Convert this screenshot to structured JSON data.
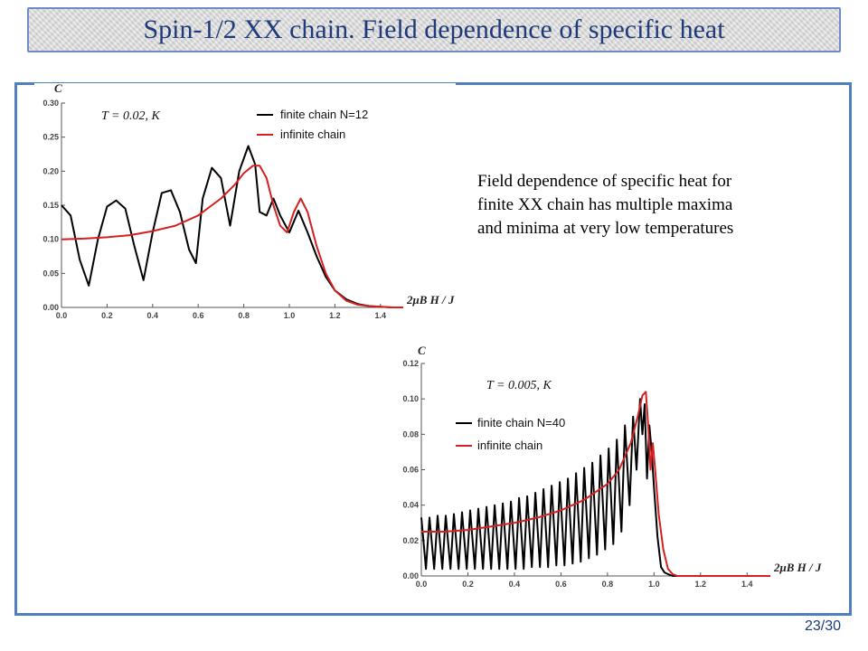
{
  "slide": {
    "title": "Spin-1/2 XX chain. Field dependence of specific heat",
    "description_lines": [
      "Field dependence of specific heat for",
      "finite XX chain has multiple maxima",
      "and minima at very low temperatures"
    ],
    "page_number": "23/30"
  },
  "colors": {
    "finite": "#000000",
    "infinite": "#d42020",
    "frame": "#4f7fc0",
    "title_text": "#1f3a7a"
  },
  "chart_data": [
    {
      "type": "line",
      "annotation": "T = 0.02, K",
      "ylabel": "C",
      "xlabel": "2μB H / J",
      "xlim": [
        0.0,
        1.5
      ],
      "ylim": [
        0.0,
        0.3
      ],
      "x_ticks": [
        "0.0",
        "0.2",
        "0.4",
        "0.6",
        "0.8",
        "1.0",
        "1.2",
        "1.4"
      ],
      "y_ticks": [
        "0.00",
        "0.05",
        "0.10",
        "0.15",
        "0.20",
        "0.25",
        "0.30"
      ],
      "x_tick_values": [
        0.0,
        0.2,
        0.4,
        0.6,
        0.8,
        1.0,
        1.2,
        1.4
      ],
      "y_tick_values": [
        0.0,
        0.05,
        0.1,
        0.15,
        0.2,
        0.25,
        0.3
      ],
      "series": [
        {
          "name": "finite chain N=12",
          "color": "#000000",
          "x": [
            0.0,
            0.04,
            0.08,
            0.12,
            0.16,
            0.2,
            0.24,
            0.28,
            0.32,
            0.36,
            0.4,
            0.44,
            0.48,
            0.52,
            0.56,
            0.59,
            0.62,
            0.66,
            0.7,
            0.74,
            0.78,
            0.82,
            0.85,
            0.87,
            0.9,
            0.93,
            0.96,
            1.0,
            1.04,
            1.08,
            1.12,
            1.16,
            1.2,
            1.25,
            1.3,
            1.35,
            1.4,
            1.45,
            1.5
          ],
          "y": [
            0.15,
            0.135,
            0.07,
            0.032,
            0.1,
            0.148,
            0.157,
            0.145,
            0.09,
            0.04,
            0.11,
            0.168,
            0.172,
            0.14,
            0.085,
            0.065,
            0.16,
            0.205,
            0.19,
            0.12,
            0.2,
            0.237,
            0.21,
            0.14,
            0.135,
            0.16,
            0.135,
            0.11,
            0.142,
            0.11,
            0.075,
            0.045,
            0.025,
            0.012,
            0.005,
            0.002,
            0.001,
            0.0,
            0.0
          ]
        },
        {
          "name": "infinite chain",
          "color": "#d42020",
          "x": [
            0.0,
            0.1,
            0.2,
            0.3,
            0.4,
            0.5,
            0.6,
            0.7,
            0.76,
            0.8,
            0.84,
            0.87,
            0.9,
            0.93,
            0.96,
            0.99,
            1.02,
            1.05,
            1.08,
            1.12,
            1.16,
            1.2,
            1.25,
            1.3,
            1.35,
            1.4,
            1.45,
            1.5
          ],
          "y": [
            0.1,
            0.101,
            0.103,
            0.106,
            0.112,
            0.12,
            0.135,
            0.16,
            0.18,
            0.197,
            0.208,
            0.208,
            0.19,
            0.15,
            0.12,
            0.11,
            0.14,
            0.16,
            0.14,
            0.09,
            0.05,
            0.025,
            0.01,
            0.004,
            0.002,
            0.001,
            0.0,
            0.0
          ]
        }
      ]
    },
    {
      "type": "line",
      "annotation": "T = 0.005, K",
      "ylabel": "C",
      "xlabel": "2μB H / J",
      "xlim": [
        0.0,
        1.5
      ],
      "ylim": [
        0.0,
        0.12
      ],
      "x_ticks": [
        "0.0",
        "0.2",
        "0.4",
        "0.6",
        "0.8",
        "1.0",
        "1.2",
        "1.4"
      ],
      "y_ticks": [
        "0.00",
        "0.02",
        "0.04",
        "0.06",
        "0.08",
        "0.10",
        "0.12"
      ],
      "x_tick_values": [
        0.0,
        0.2,
        0.4,
        0.6,
        0.8,
        1.0,
        1.2,
        1.4
      ],
      "y_tick_values": [
        0.0,
        0.02,
        0.04,
        0.06,
        0.08,
        0.1,
        0.12
      ],
      "series": [
        {
          "name": "finite chain N=40",
          "color": "#000000",
          "x": [
            0.0,
            0.02,
            0.035,
            0.055,
            0.07,
            0.09,
            0.105,
            0.125,
            0.14,
            0.16,
            0.175,
            0.195,
            0.21,
            0.23,
            0.245,
            0.265,
            0.28,
            0.3,
            0.315,
            0.335,
            0.35,
            0.37,
            0.385,
            0.405,
            0.42,
            0.44,
            0.455,
            0.475,
            0.49,
            0.51,
            0.525,
            0.545,
            0.56,
            0.58,
            0.595,
            0.615,
            0.63,
            0.65,
            0.665,
            0.685,
            0.7,
            0.72,
            0.735,
            0.755,
            0.77,
            0.79,
            0.805,
            0.825,
            0.84,
            0.86,
            0.875,
            0.895,
            0.91,
            0.925,
            0.94,
            0.95,
            0.96,
            0.97,
            0.98,
            0.99,
            1.0,
            1.015,
            1.03,
            1.045,
            1.06,
            1.08,
            1.1,
            1.5
          ],
          "y": [
            0.033,
            0.004,
            0.033,
            0.004,
            0.034,
            0.004,
            0.034,
            0.004,
            0.035,
            0.004,
            0.036,
            0.004,
            0.037,
            0.004,
            0.038,
            0.004,
            0.039,
            0.004,
            0.04,
            0.004,
            0.041,
            0.004,
            0.042,
            0.004,
            0.044,
            0.004,
            0.045,
            0.005,
            0.047,
            0.005,
            0.049,
            0.005,
            0.051,
            0.006,
            0.053,
            0.006,
            0.055,
            0.007,
            0.058,
            0.008,
            0.061,
            0.01,
            0.064,
            0.012,
            0.068,
            0.015,
            0.072,
            0.018,
            0.077,
            0.025,
            0.085,
            0.04,
            0.09,
            0.06,
            0.1,
            0.08,
            0.097,
            0.055,
            0.085,
            0.07,
            0.05,
            0.022,
            0.005,
            0.002,
            0.001,
            0.0,
            0.0,
            0.0
          ]
        },
        {
          "name": "infinite chain",
          "color": "#d42020",
          "x": [
            0.0,
            0.1,
            0.2,
            0.3,
            0.4,
            0.5,
            0.6,
            0.7,
            0.8,
            0.85,
            0.9,
            0.93,
            0.95,
            0.965,
            0.975,
            0.985,
            0.995,
            1.005,
            1.02,
            1.04,
            1.06,
            1.08,
            1.1,
            1.2,
            1.5
          ],
          "y": [
            0.025,
            0.025,
            0.026,
            0.028,
            0.03,
            0.033,
            0.037,
            0.043,
            0.052,
            0.06,
            0.075,
            0.09,
            0.102,
            0.104,
            0.085,
            0.06,
            0.075,
            0.06,
            0.035,
            0.015,
            0.004,
            0.001,
            0.0,
            0.0,
            0.0
          ]
        }
      ]
    }
  ]
}
